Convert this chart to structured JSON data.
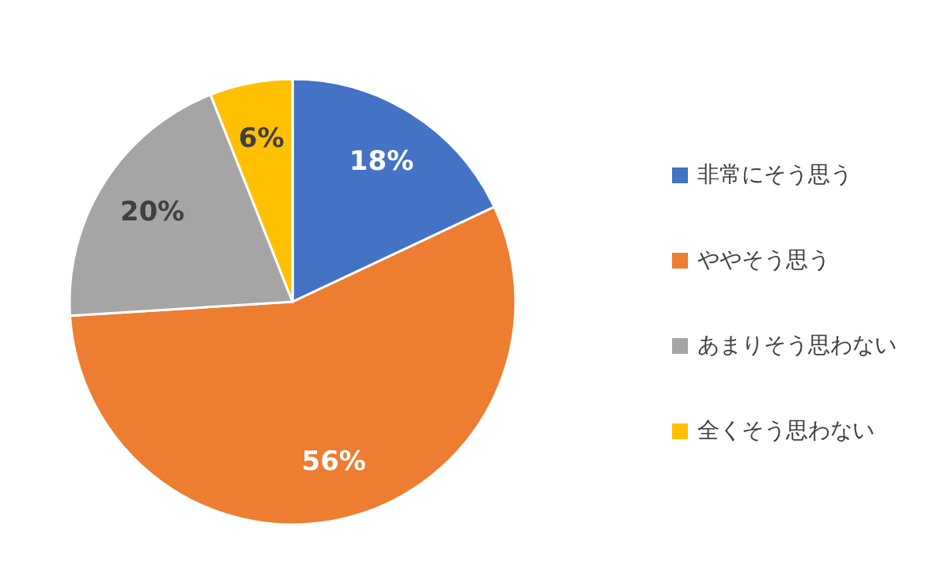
{
  "chart_data": {
    "type": "pie",
    "categories": [
      "非常にそう思う",
      "ややそう思う",
      "あまりそう思わない",
      "全くそう思わない"
    ],
    "values": [
      18,
      56,
      20,
      6
    ],
    "colors": [
      "#4472c4",
      "#ed7d31",
      "#a5a5a5",
      "#ffc000"
    ],
    "value_labels": [
      "18%",
      "56%",
      "20%",
      "6%"
    ],
    "legend": "right"
  }
}
